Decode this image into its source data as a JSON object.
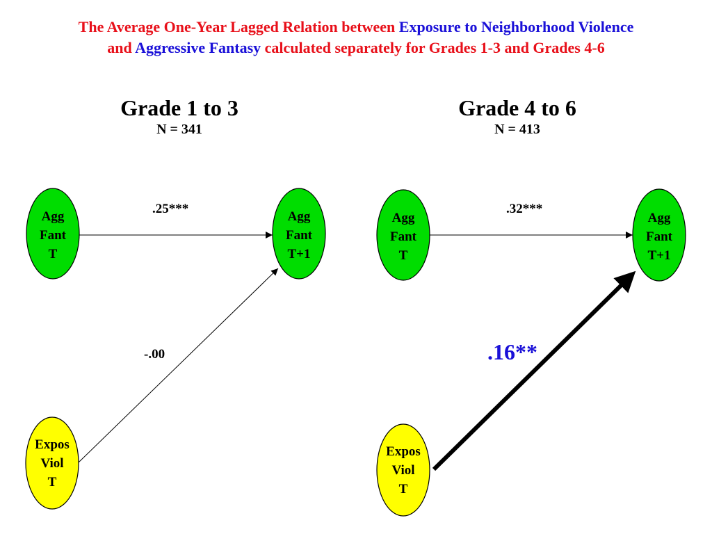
{
  "title": {
    "line1_a": "The Average One-Year Lagged Relation between ",
    "line1_b": "Exposure to Neighborhood Violence",
    "line2_a": "and ",
    "line2_b": "Aggressive Fantasy",
    "line2_c": " calculated separately for Grades 1-3 and Grades 4-6"
  },
  "panels": [
    {
      "heading": "Grade 1 to 3",
      "n": "N = 341",
      "nodes": {
        "agg_t": [
          "Agg",
          "Fant",
          "T"
        ],
        "agg_t1": [
          "Agg",
          "Fant",
          "T+1"
        ],
        "expos": [
          "Expos",
          "Viol",
          "T"
        ]
      },
      "paths": {
        "stability": ".25***",
        "cross": "-.00"
      }
    },
    {
      "heading": "Grade 4 to 6",
      "n": "N = 413",
      "nodes": {
        "agg_t": [
          "Agg",
          "Fant",
          "T"
        ],
        "agg_t1": [
          "Agg",
          "Fant",
          "T+1"
        ],
        "expos": [
          "Expos",
          "Viol",
          "T"
        ]
      },
      "paths": {
        "stability": ".32***",
        "cross": ".16**"
      }
    }
  ],
  "colors": {
    "red": "#e8101a",
    "blue": "#1a10d8",
    "green": "#00dd00",
    "yellow": "#ffff00"
  }
}
